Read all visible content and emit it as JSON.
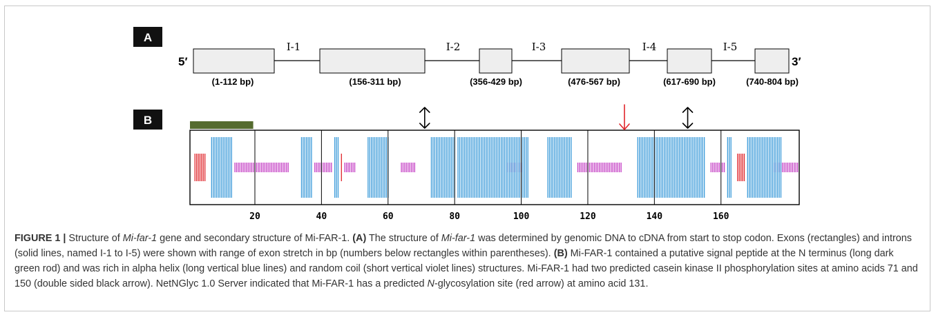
{
  "panel_a": {
    "label": "A",
    "five_prime": "5′",
    "three_prime": "3′",
    "exons": [
      "(1-112 bp)",
      "(156-311 bp)",
      "(356-429 bp)",
      "(476-567 bp)",
      "(617-690 bp)",
      "(740-804 bp)"
    ],
    "introns": [
      "I-1",
      "I-2",
      "I-3",
      "I-4",
      "I-5"
    ]
  },
  "panel_b": {
    "label": "B",
    "axis_ticks": [
      "20",
      "40",
      "60",
      "80",
      "100",
      "120",
      "140",
      "160"
    ],
    "residue_range": [
      1,
      183
    ],
    "signal_peptide": {
      "start": 1,
      "end": 19
    },
    "phosphorylation_sites": [
      71,
      150
    ],
    "glycosylation_site": 131,
    "helix_segments": [
      [
        7,
        13
      ],
      [
        34,
        37
      ],
      [
        44,
        45
      ],
      [
        54,
        60
      ],
      [
        73,
        80
      ],
      [
        81,
        102
      ],
      [
        108,
        115
      ],
      [
        135,
        155
      ],
      [
        162,
        163
      ],
      [
        168,
        178
      ]
    ],
    "coil_segments": [
      [
        14,
        30
      ],
      [
        38,
        43
      ],
      [
        47,
        50
      ],
      [
        64,
        68
      ],
      [
        96,
        100
      ],
      [
        117,
        130
      ],
      [
        157,
        161
      ],
      [
        176,
        183
      ]
    ],
    "other_segments": [
      [
        2,
        5
      ],
      [
        46,
        46
      ],
      [
        165,
        167
      ]
    ],
    "colors": {
      "signal": "#556b2f",
      "helix": "#3a9ad9",
      "coil": "#c43ec4",
      "other": "#e0242a",
      "phospho_arrow": "#000000",
      "glyco_arrow": "#e0242a"
    }
  },
  "caption": {
    "figure_label": "FIGURE 1 |",
    "p1": " Structure of ",
    "gene1": "Mi-far-1",
    "p2": " gene and secondary structure of Mi-FAR-1. ",
    "a_label": "(A)",
    "p3": " The structure of ",
    "gene2": "Mi-far-1",
    "p4": " was determined by genomic DNA to cDNA from start to stop codon. Exons (rectangles) and introns (solid lines, named I-1 to I-5) were shown with range of exon stretch in bp (numbers below rectangles within parentheses). ",
    "b_label": "(B)",
    "p5": " Mi-FAR-1 contained a putative signal peptide at the N terminus (long dark green rod) and was rich in alpha helix (long vertical blue lines) and random coil (short vertical violet lines) structures. Mi-FAR-1 had two predicted casein kinase II phosphorylation sites at amino acids 71 and 150 (double sided black arrow). NetNGlyc 1.0 Server indicated that Mi-FAR-1 has a predicted ",
    "n_italic": "N",
    "p6": "-glycosylation site (red arrow) at amino acid 131."
  }
}
